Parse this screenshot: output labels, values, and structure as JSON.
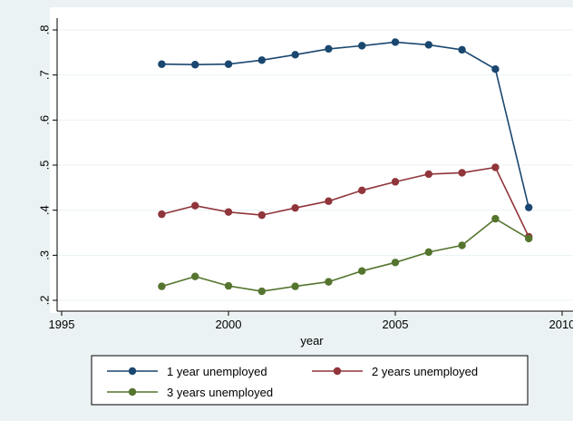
{
  "chart_data": {
    "type": "line",
    "title": "",
    "xlabel": "year",
    "ylabel": "",
    "xlim": [
      1995,
      2010
    ],
    "ylim": [
      0.2,
      0.8
    ],
    "x_ticks": [
      1995,
      2000,
      2005,
      2010
    ],
    "x_tick_labels": [
      "1995",
      "2000",
      "2005",
      "2010"
    ],
    "y_ticks": [
      0.2,
      0.3,
      0.4,
      0.5,
      0.6,
      0.7,
      0.8
    ],
    "y_tick_labels": [
      ".2",
      ".3",
      ".4",
      ".5",
      ".6",
      ".7",
      ".8"
    ],
    "grid": "horizontal",
    "legend_position": "bottom",
    "x": [
      1998,
      1999,
      2000,
      2001,
      2002,
      2003,
      2004,
      2005,
      2006,
      2007,
      2008,
      2009
    ],
    "series": [
      {
        "name": "1 year unemployed",
        "color": "#1a476f",
        "values": [
          0.724,
          0.723,
          0.724,
          0.733,
          0.745,
          0.758,
          0.765,
          0.773,
          0.767,
          0.756,
          0.713,
          0.406
        ]
      },
      {
        "name": "2 years unemployed",
        "color": "#90353b",
        "values": [
          0.391,
          0.41,
          0.396,
          0.389,
          0.405,
          0.42,
          0.444,
          0.463,
          0.48,
          0.483,
          0.495,
          0.341
        ]
      },
      {
        "name": "3 years unemployed",
        "color": "#55752f",
        "values": [
          0.231,
          0.253,
          0.232,
          0.22,
          0.231,
          0.241,
          0.265,
          0.284,
          0.307,
          0.322,
          0.381,
          0.337
        ]
      }
    ]
  }
}
